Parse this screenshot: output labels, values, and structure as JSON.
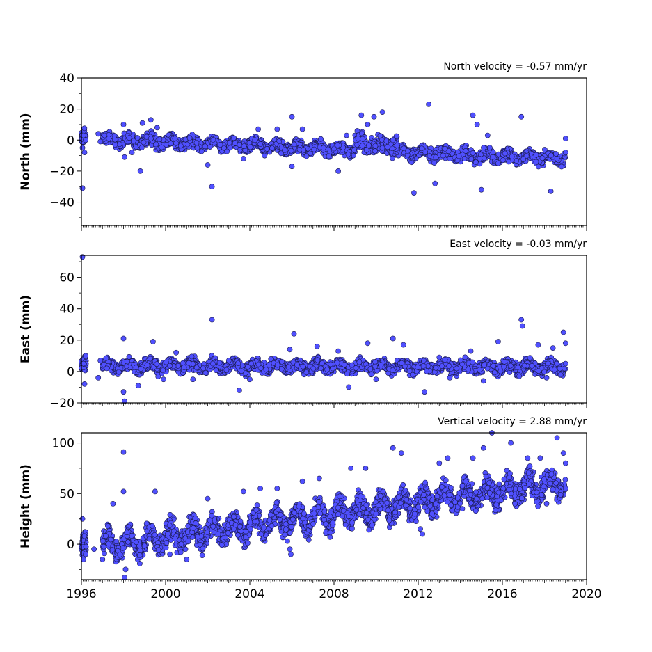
{
  "colors": {
    "marker_fill": "#5050ff",
    "marker_edge": "#1a1a4d",
    "axis": "#000000"
  },
  "chart_data": [
    {
      "type": "scatter",
      "annotation": "North velocity = -0.57 mm/yr",
      "ylabel": "North (mm)",
      "xlim": [
        1996,
        2020
      ],
      "ylim": [
        -55,
        40
      ],
      "yticks": [
        -40,
        -20,
        0,
        20,
        40
      ],
      "xticks": [
        1996,
        2000,
        2004,
        2008,
        2012,
        2016,
        2020
      ],
      "grid": false,
      "trend": {
        "intercept_1996": 1.0,
        "velocity": -0.57
      },
      "series": [
        {
          "values": [
            [
              1996.05,
              -5
            ],
            [
              1996.15,
              -8
            ],
            [
              1996.2,
              0
            ],
            [
              1996.1,
              3
            ],
            [
              1996.05,
              -31
            ],
            [
              1996.8,
              4
            ],
            [
              1996.9,
              -1
            ],
            [
              1997.1,
              3
            ],
            [
              1997.3,
              1
            ],
            [
              1997.6,
              -3
            ],
            [
              1998.0,
              10
            ],
            [
              1998.05,
              -11
            ],
            [
              1998.4,
              -8
            ],
            [
              1998.8,
              -20
            ],
            [
              1998.9,
              11
            ],
            [
              1999.3,
              13
            ],
            [
              1999.6,
              8
            ],
            [
              2000.5,
              -2
            ],
            [
              2001.5,
              -5
            ],
            [
              2002.0,
              -16
            ],
            [
              2002.2,
              -30
            ],
            [
              2002.6,
              -3
            ],
            [
              2003.3,
              -2
            ],
            [
              2003.7,
              -12
            ],
            [
              2004.4,
              7
            ],
            [
              2004.7,
              -10
            ],
            [
              2005.3,
              7
            ],
            [
              2006.0,
              15
            ],
            [
              2006.0,
              -17
            ],
            [
              2006.5,
              7
            ],
            [
              2007.5,
              -5
            ],
            [
              2008.2,
              -20
            ],
            [
              2008.6,
              3
            ],
            [
              2009.3,
              16
            ],
            [
              2009.6,
              10
            ],
            [
              2009.9,
              15
            ],
            [
              2010.3,
              18
            ],
            [
              2010.8,
              0
            ],
            [
              2011.5,
              -7
            ],
            [
              2011.8,
              -34
            ],
            [
              2012.5,
              23
            ],
            [
              2012.8,
              -28
            ],
            [
              2013.5,
              -12
            ],
            [
              2014.2,
              -12
            ],
            [
              2014.6,
              16
            ],
            [
              2014.8,
              10
            ],
            [
              2015.0,
              -32
            ],
            [
              2015.3,
              3
            ],
            [
              2015.8,
              -15
            ],
            [
              2016.3,
              -14
            ],
            [
              2016.9,
              15
            ],
            [
              2017.6,
              -14
            ],
            [
              2018.3,
              -33
            ],
            [
              2018.6,
              -12
            ],
            [
              2019.0,
              -8
            ],
            [
              2019.0,
              1
            ]
          ]
        }
      ]
    },
    {
      "type": "scatter",
      "annotation": "East velocity = -0.03 mm/yr",
      "ylabel": "East (mm)",
      "xlim": [
        1996,
        2020
      ],
      "ylim": [
        -20,
        74
      ],
      "yticks": [
        -20,
        0,
        20,
        40,
        60
      ],
      "xticks": [
        1996,
        2000,
        2004,
        2008,
        2012,
        2016,
        2020
      ],
      "grid": false,
      "trend": {
        "intercept_1996": 3.5,
        "velocity": -0.03
      },
      "series": [
        {
          "values": [
            [
              1996.05,
              73
            ],
            [
              1996.1,
              5
            ],
            [
              1996.15,
              -8
            ],
            [
              1996.2,
              10
            ],
            [
              1996.8,
              -4
            ],
            [
              1996.9,
              7
            ],
            [
              1997.2,
              2
            ],
            [
              1998.0,
              21
            ],
            [
              1998.05,
              -19
            ],
            [
              1998.0,
              -13
            ],
            [
              1998.7,
              -9
            ],
            [
              1999.4,
              19
            ],
            [
              1999.9,
              -5
            ],
            [
              2000.5,
              12
            ],
            [
              2001.3,
              -5
            ],
            [
              2002.2,
              33
            ],
            [
              2003.0,
              7
            ],
            [
              2003.5,
              -12
            ],
            [
              2004.0,
              -5
            ],
            [
              2005.0,
              8
            ],
            [
              2005.9,
              14
            ],
            [
              2006.1,
              24
            ],
            [
              2007.2,
              16
            ],
            [
              2008.2,
              13
            ],
            [
              2008.7,
              -10
            ],
            [
              2009.6,
              18
            ],
            [
              2010.0,
              -5
            ],
            [
              2010.8,
              21
            ],
            [
              2011.3,
              17
            ],
            [
              2012.3,
              -13
            ],
            [
              2013.0,
              9
            ],
            [
              2013.5,
              -4
            ],
            [
              2014.5,
              13
            ],
            [
              2015.1,
              -6
            ],
            [
              2015.8,
              19
            ],
            [
              2016.9,
              33
            ],
            [
              2016.95,
              29
            ],
            [
              2016.8,
              -3
            ],
            [
              2017.7,
              17
            ],
            [
              2018.1,
              -4
            ],
            [
              2018.4,
              15
            ],
            [
              2018.9,
              25
            ],
            [
              2019.0,
              18
            ],
            [
              2019.0,
              5
            ]
          ]
        }
      ]
    },
    {
      "type": "scatter",
      "annotation": "Vertical velocity = 2.88 mm/yr",
      "ylabel": "Height (mm)",
      "xlim": [
        1996,
        2020
      ],
      "ylim": [
        -35,
        110
      ],
      "yticks": [
        0,
        50,
        100
      ],
      "xticks": [
        1996,
        2000,
        2004,
        2008,
        2012,
        2016,
        2020
      ],
      "xtick_labels": [
        "1996",
        "2000",
        "2004",
        "2008",
        "2012",
        "2016",
        "2020"
      ],
      "grid": false,
      "trend": {
        "intercept_1996": -5,
        "velocity": 2.88
      },
      "series": [
        {
          "values": [
            [
              1996.05,
              25
            ],
            [
              1996.1,
              -15
            ],
            [
              1996.15,
              8
            ],
            [
              1996.2,
              -10
            ],
            [
              1996.6,
              -5
            ],
            [
              1997.0,
              -15
            ],
            [
              1997.5,
              40
            ],
            [
              1998.0,
              91
            ],
            [
              1998.0,
              52
            ],
            [
              1998.05,
              -33
            ],
            [
              1998.1,
              -25
            ],
            [
              1999.5,
              52
            ],
            [
              2000.2,
              -10
            ],
            [
              2001.0,
              -15
            ],
            [
              2002.0,
              45
            ],
            [
              2002.5,
              10
            ],
            [
              2003.7,
              52
            ],
            [
              2004.5,
              55
            ],
            [
              2005.3,
              55
            ],
            [
              2005.9,
              -5
            ],
            [
              2005.95,
              -10
            ],
            [
              2006.5,
              62
            ],
            [
              2007.0,
              20
            ],
            [
              2007.3,
              65
            ],
            [
              2008.8,
              75
            ],
            [
              2009.5,
              75
            ],
            [
              2010.0,
              30
            ],
            [
              2010.8,
              95
            ],
            [
              2011.2,
              90
            ],
            [
              2012.1,
              15
            ],
            [
              2012.2,
              10
            ],
            [
              2013.0,
              80
            ],
            [
              2013.4,
              85
            ],
            [
              2014.1,
              35
            ],
            [
              2014.6,
              85
            ],
            [
              2015.1,
              95
            ],
            [
              2015.5,
              110
            ],
            [
              2016.4,
              100
            ],
            [
              2016.6,
              40
            ],
            [
              2017.2,
              85
            ],
            [
              2017.8,
              85
            ],
            [
              2018.1,
              40
            ],
            [
              2018.6,
              105
            ],
            [
              2018.9,
              90
            ],
            [
              2019.0,
              55
            ],
            [
              2019.0,
              80
            ]
          ]
        }
      ]
    }
  ]
}
